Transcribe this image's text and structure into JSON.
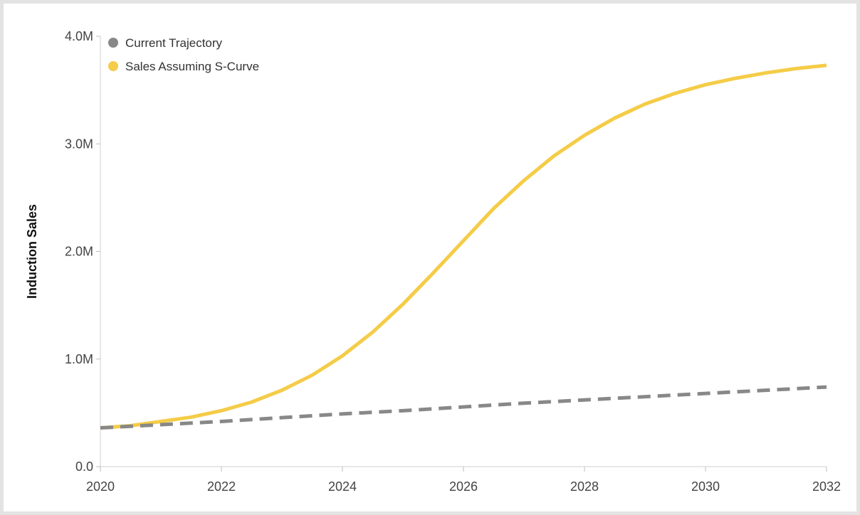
{
  "chart_data": {
    "type": "line",
    "title": "",
    "xlabel": "",
    "ylabel": "Induction Sales",
    "xlim": [
      2020,
      2032
    ],
    "ylim": [
      0,
      4000000
    ],
    "x_ticks": [
      {
        "value": 2020,
        "label": "2020"
      },
      {
        "value": 2022,
        "label": "2022"
      },
      {
        "value": 2024,
        "label": "2024"
      },
      {
        "value": 2026,
        "label": "2026"
      },
      {
        "value": 2028,
        "label": "2028"
      },
      {
        "value": 2030,
        "label": "2030"
      },
      {
        "value": 2032,
        "label": "2032"
      }
    ],
    "y_ticks": [
      {
        "value": 0,
        "label": "0.0"
      },
      {
        "value": 1000000,
        "label": "1.0M"
      },
      {
        "value": 2000000,
        "label": "2.0M"
      },
      {
        "value": 3000000,
        "label": "3.0M"
      },
      {
        "value": 4000000,
        "label": "4.0M"
      }
    ],
    "grid": false,
    "legend_position": "top-left",
    "series": [
      {
        "name": "Current Trajectory",
        "color": "#888888",
        "style": "dashed",
        "x": [
          2020,
          2021,
          2022,
          2023,
          2024,
          2025,
          2026,
          2027,
          2028,
          2029,
          2030,
          2031,
          2032
        ],
        "values": [
          360000,
          390000,
          420000,
          455000,
          490000,
          520000,
          555000,
          590000,
          620000,
          650000,
          680000,
          710000,
          740000
        ]
      },
      {
        "name": "Sales Assuming S-Curve",
        "color": "#f4cc47",
        "style": "solid",
        "x": [
          2020,
          2020.5,
          2021,
          2021.5,
          2022,
          2022.5,
          2023,
          2023.5,
          2024,
          2024.5,
          2025,
          2025.5,
          2026,
          2026.5,
          2027,
          2027.5,
          2028,
          2028.5,
          2029,
          2029.5,
          2030,
          2030.5,
          2031,
          2031.5,
          2032
        ],
        "values": [
          360000,
          380000,
          420000,
          460000,
          520000,
          600000,
          710000,
          850000,
          1030000,
          1250000,
          1510000,
          1800000,
          2100000,
          2400000,
          2660000,
          2890000,
          3080000,
          3240000,
          3370000,
          3470000,
          3550000,
          3610000,
          3660000,
          3700000,
          3730000
        ]
      }
    ]
  }
}
